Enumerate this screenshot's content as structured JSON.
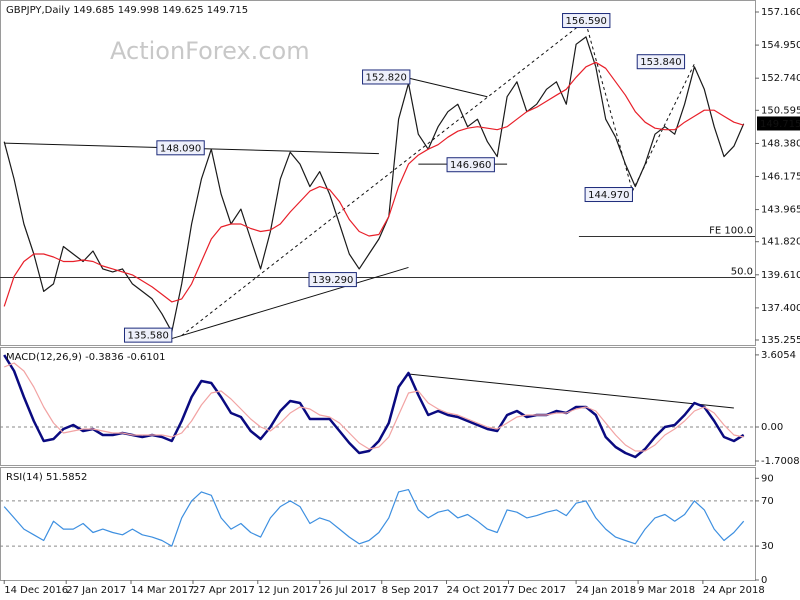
{
  "chart_data": [
    {
      "type": "line",
      "title": "GBPJPY,Daily  149.685 149.998 149.625 149.715",
      "watermark": "ActionForex.com",
      "x": [
        "2016-12-14",
        "2016-12-21",
        "2016-12-28",
        "2017-01-04",
        "2017-01-11",
        "2017-01-18",
        "2017-01-25",
        "2017-02-01",
        "2017-02-08",
        "2017-02-15",
        "2017-02-22",
        "2017-03-01",
        "2017-03-08",
        "2017-03-15",
        "2017-03-22",
        "2017-03-29",
        "2017-04-05",
        "2017-04-12",
        "2017-04-19",
        "2017-04-26",
        "2017-05-03",
        "2017-05-10",
        "2017-05-17",
        "2017-05-24",
        "2017-05-31",
        "2017-06-07",
        "2017-06-14",
        "2017-06-21",
        "2017-06-28",
        "2017-07-05",
        "2017-07-12",
        "2017-07-19",
        "2017-07-26",
        "2017-08-02",
        "2017-08-09",
        "2017-08-16",
        "2017-08-23",
        "2017-08-30",
        "2017-09-06",
        "2017-09-13",
        "2017-09-20",
        "2017-09-27",
        "2017-10-04",
        "2017-10-11",
        "2017-10-18",
        "2017-10-25",
        "2017-11-01",
        "2017-11-08",
        "2017-11-15",
        "2017-11-22",
        "2017-11-29",
        "2017-12-06",
        "2017-12-13",
        "2017-12-20",
        "2017-12-27",
        "2018-01-03",
        "2018-01-10",
        "2018-01-17",
        "2018-01-24",
        "2018-01-31",
        "2018-02-07",
        "2018-02-14",
        "2018-02-21",
        "2018-02-28",
        "2018-03-07",
        "2018-03-14",
        "2018-03-21",
        "2018-03-28",
        "2018-04-04",
        "2018-04-11",
        "2018-04-18",
        "2018-04-25",
        "2018-05-02",
        "2018-05-09",
        "2018-05-16",
        "2018-05-23"
      ],
      "xlim": [
        "2016-12-11",
        "2018-05-31"
      ],
      "series": [
        {
          "color": "#1a1a1a",
          "values": [
            148.5,
            146,
            143,
            141,
            138.5,
            139,
            141.5,
            141,
            140.5,
            141.2,
            140,
            139.8,
            140,
            139,
            138.5,
            138,
            137,
            135.8,
            139,
            143,
            146,
            148,
            145,
            143,
            144,
            142,
            140,
            142.5,
            146,
            147.8,
            147,
            145.5,
            146.5,
            145,
            143,
            141,
            140,
            141,
            142,
            143.5,
            150,
            152.4,
            149,
            148,
            149.5,
            150.5,
            151,
            149.5,
            150,
            148.5,
            147.5,
            151.5,
            152.5,
            150.5,
            151,
            152,
            152.5,
            151,
            155,
            155.5,
            153.5,
            150,
            148.8,
            147,
            145.5,
            147,
            149,
            149.5,
            149,
            151,
            153.5,
            152,
            149.5,
            147.5,
            148.2,
            149.7
          ]
        },
        {
          "color": "#e8202a",
          "values": [
            137.5,
            139.5,
            140.5,
            141,
            141,
            140.8,
            140.5,
            140.5,
            140.6,
            140.5,
            140.2,
            140,
            139.8,
            139.6,
            139.2,
            138.8,
            138.3,
            137.8,
            138,
            139,
            140.5,
            142,
            142.8,
            143,
            143,
            142.7,
            142.5,
            142.6,
            143,
            143.8,
            144.5,
            145.2,
            145.5,
            145.3,
            144.5,
            143.3,
            142.5,
            142.2,
            142.3,
            143.5,
            145.5,
            147,
            147.6,
            148,
            148.3,
            148.8,
            149.2,
            149.4,
            149.5,
            149.4,
            149.3,
            149.5,
            150,
            150.5,
            150.8,
            151.2,
            151.6,
            152,
            152.8,
            153.5,
            153.8,
            153.4,
            152.5,
            151.6,
            150.5,
            149.8,
            149.4,
            149.3,
            149.3,
            149.8,
            150.2,
            150.6,
            150.6,
            150.2,
            149.8,
            149.6
          ]
        }
      ],
      "ylim": [
        134.921,
        157.961
      ],
      "yticks": [
        {
          "value": 157.16,
          "label": "157.160"
        },
        {
          "value": 154.95,
          "label": "154.950"
        },
        {
          "value": 152.74,
          "label": "152.740"
        },
        {
          "value": 150.595,
          "label": "150.595"
        },
        {
          "value": 148.38,
          "label": "148.380"
        },
        {
          "value": 146.175,
          "label": "146.175"
        },
        {
          "value": 143.965,
          "label": "143.965"
        },
        {
          "value": 141.82,
          "label": "141.820"
        },
        {
          "value": 139.61,
          "label": "139.610"
        },
        {
          "value": 137.4,
          "label": "137.400"
        },
        135.255
      ],
      "last": {
        "value": 149.715,
        "label": "149.715"
      },
      "annotations": [
        {
          "x": "2018-02-17",
          "y": 156.59,
          "label": "156.590"
        },
        {
          "x": "2017-09-28",
          "y": 152.82,
          "label": "152.820"
        },
        {
          "x": "2018-04-11",
          "y": 153.84,
          "label": "153.840"
        },
        {
          "x": "2017-05-05",
          "y": 148.09,
          "label": "148.090"
        },
        {
          "x": "2017-11-27",
          "y": 146.96,
          "label": "146.960"
        },
        {
          "x": "2018-03-05",
          "y": 144.97,
          "label": "144.970"
        },
        {
          "x": "2017-08-21",
          "y": 139.29,
          "label": "139.290"
        },
        {
          "x": "2017-04-12",
          "y": 135.58,
          "label": "135.580"
        }
      ],
      "levels": [
        {
          "x": [
            "2018-01-26",
            "2018-05-31"
          ],
          "y": 142.17,
          "label": "FE 100.0"
        },
        {
          "x": [
            "2016-12-11",
            "2018-05-31"
          ],
          "y": 139.43,
          "label": "50.0"
        }
      ],
      "trendlines": [
        {
          "x": [
            "2016-12-14",
            "2017-09-06"
          ],
          "y": [
            148.4,
            147.7
          ],
          "dashed": false
        },
        {
          "x": [
            "2017-09-20",
            "2017-11-22"
          ],
          "y": [
            152.9,
            151.5
          ],
          "dashed": false
        },
        {
          "x": [
            "2017-10-04",
            "2017-12-06"
          ],
          "y": [
            147.0,
            147.0
          ],
          "dashed": false
        },
        {
          "x": [
            "2017-04-12",
            "2017-09-27"
          ],
          "y": [
            135.35,
            140.1
          ],
          "dashed": false
        },
        {
          "x": [
            "2017-04-19",
            "2018-01-31"
          ],
          "y": [
            135.55,
            156.6
          ],
          "dashed": true
        },
        {
          "x": [
            "2018-01-31",
            "2018-03-05"
          ],
          "y": [
            156.4,
            145.2
          ],
          "dashed": true
        },
        {
          "x": [
            "2018-03-05",
            "2018-04-18"
          ],
          "y": [
            145.2,
            153.7
          ],
          "dashed": true
        }
      ]
    },
    {
      "type": "line",
      "title": "MACD(12,26,9) -0.3836 -0.6101",
      "series": [
        {
          "color": "#0a0a80",
          "values": [
            3.6,
            2.8,
            1.5,
            0.3,
            -0.7,
            -0.6,
            -0.1,
            0.1,
            -0.2,
            -0.1,
            -0.4,
            -0.4,
            -0.3,
            -0.4,
            -0.5,
            -0.4,
            -0.5,
            -0.7,
            0.3,
            1.5,
            2.3,
            2.2,
            1.5,
            0.7,
            0.5,
            -0.2,
            -0.6,
            0.0,
            0.8,
            1.3,
            1.2,
            0.4,
            0.4,
            0.4,
            -0.2,
            -0.8,
            -1.3,
            -1.2,
            -0.7,
            0.2,
            2.0,
            2.7,
            1.6,
            0.6,
            0.8,
            0.6,
            0.5,
            0.3,
            0.1,
            -0.1,
            -0.2,
            0.6,
            0.8,
            0.5,
            0.6,
            0.6,
            0.8,
            0.7,
            1.0,
            1.0,
            0.6,
            -0.5,
            -1.0,
            -1.3,
            -1.5,
            -1.1,
            -0.5,
            0.0,
            0.1,
            0.6,
            1.2,
            1.0,
            0.3,
            -0.5,
            -0.7,
            -0.4
          ]
        },
        {
          "color": "#f2a3a3",
          "values": [
            3.0,
            3.2,
            2.8,
            2.0,
            1.0,
            0.2,
            -0.3,
            -0.2,
            -0.1,
            -0.1,
            -0.2,
            -0.3,
            -0.3,
            -0.4,
            -0.4,
            -0.4,
            -0.4,
            -0.5,
            -0.3,
            0.3,
            1.1,
            1.7,
            1.8,
            1.4,
            0.9,
            0.4,
            0.0,
            -0.2,
            0.2,
            0.7,
            1.0,
            0.9,
            0.6,
            0.5,
            0.2,
            -0.3,
            -0.8,
            -1.1,
            -1.0,
            -0.5,
            0.6,
            1.7,
            1.8,
            1.2,
            0.9,
            0.7,
            0.6,
            0.4,
            0.2,
            0.0,
            -0.1,
            0.2,
            0.5,
            0.6,
            0.6,
            0.6,
            0.7,
            0.7,
            0.9,
            1.0,
            0.8,
            0.2,
            -0.4,
            -0.9,
            -1.2,
            -1.2,
            -0.9,
            -0.4,
            -0.1,
            0.3,
            0.8,
            1.0,
            0.7,
            0.1,
            -0.4,
            -0.5
          ]
        }
      ],
      "ylim": [
        -1.9,
        4.0
      ],
      "yticks": [
        3.6054,
        {
          "value": 0,
          "label": "0.00"
        },
        -1.7008
      ],
      "ref_lines": [
        0
      ],
      "trendlines": [
        {
          "x": [
            "2017-09-27",
            "2018-05-16"
          ],
          "y": [
            2.65,
            0.95
          ],
          "dashed": false
        }
      ]
    },
    {
      "type": "line",
      "title": "RSI(14) 51.5852",
      "series": [
        {
          "color": "#3d8fe0",
          "values": [
            65,
            55,
            45,
            40,
            35,
            52,
            45,
            45,
            50,
            42,
            45,
            42,
            40,
            45,
            40,
            38,
            35,
            30,
            55,
            70,
            78,
            75,
            55,
            45,
            50,
            42,
            38,
            55,
            65,
            70,
            65,
            50,
            55,
            52,
            45,
            38,
            32,
            35,
            42,
            55,
            78,
            80,
            62,
            55,
            60,
            62,
            55,
            58,
            52,
            45,
            42,
            62,
            60,
            55,
            57,
            60,
            62,
            57,
            68,
            70,
            55,
            45,
            38,
            35,
            32,
            45,
            55,
            58,
            52,
            58,
            70,
            62,
            45,
            35,
            42,
            52
          ]
        }
      ],
      "ylim": [
        0,
        100
      ],
      "yticks": [
        90,
        70,
        30,
        0
      ],
      "ref_lines": [
        70,
        30
      ],
      "xticks": [
        {
          "value": "2016-12-14",
          "label": "14 Dec 2016"
        },
        {
          "value": "2017-01-27",
          "label": "27 Jan 2017"
        },
        {
          "value": "2017-03-14",
          "label": "14 Mar 2017"
        },
        {
          "value": "2017-04-27",
          "label": "27 Apr 2017"
        },
        {
          "value": "2017-06-12",
          "label": "12 Jun 2017"
        },
        {
          "value": "2017-07-26",
          "label": "26 Jul 2017"
        },
        {
          "value": "2017-09-08",
          "label": "8 Sep 2017"
        },
        {
          "value": "2017-10-24",
          "label": "24 Oct 2017"
        },
        {
          "value": "2017-12-07",
          "label": "7 Dec 2017"
        },
        {
          "value": "2018-01-24",
          "label": "24 Jan 2018"
        },
        {
          "value": "2018-03-09",
          "label": "9 Mar 2018"
        },
        {
          "value": "2018-04-24",
          "label": "24 Apr 2018"
        }
      ]
    }
  ]
}
